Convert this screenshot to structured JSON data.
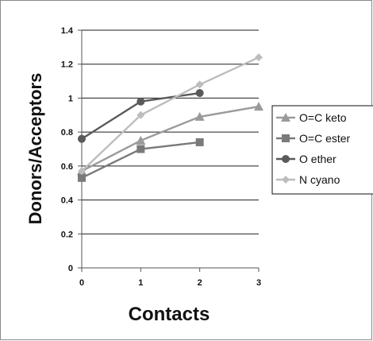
{
  "chart_data": {
    "type": "line",
    "title": "",
    "xlabel": "Contacts",
    "ylabel": "Donors/Acceptors",
    "x": [
      0,
      1,
      2,
      3
    ],
    "xlim": [
      0,
      3
    ],
    "ylim": [
      0,
      1.4
    ],
    "x_ticks": [
      "0",
      "1",
      "2",
      "3"
    ],
    "y_ticks": [
      "0",
      "0.2",
      "0.4",
      "0.6",
      "0.8",
      "1",
      "1.2",
      "1.4"
    ],
    "grid": "horizontal",
    "legend_position": "right",
    "series": [
      {
        "name": "O=C keto",
        "marker": "triangle",
        "color": "#9a9a9a",
        "x": [
          0,
          1,
          2,
          3
        ],
        "values": [
          0.57,
          0.75,
          0.89,
          0.95
        ]
      },
      {
        "name": "O=C ester",
        "marker": "square",
        "color": "#7a7a7a",
        "x": [
          0,
          1,
          2
        ],
        "values": [
          0.53,
          0.7,
          0.74
        ]
      },
      {
        "name": "O ether",
        "marker": "circle",
        "color": "#5a5a5a",
        "x": [
          0,
          1,
          2
        ],
        "values": [
          0.76,
          0.98,
          1.03
        ]
      },
      {
        "name": "N cyano",
        "marker": "diamond",
        "color": "#bdbdbd",
        "x": [
          0,
          1,
          2,
          3
        ],
        "values": [
          0.57,
          0.9,
          1.08,
          1.24
        ]
      }
    ]
  }
}
